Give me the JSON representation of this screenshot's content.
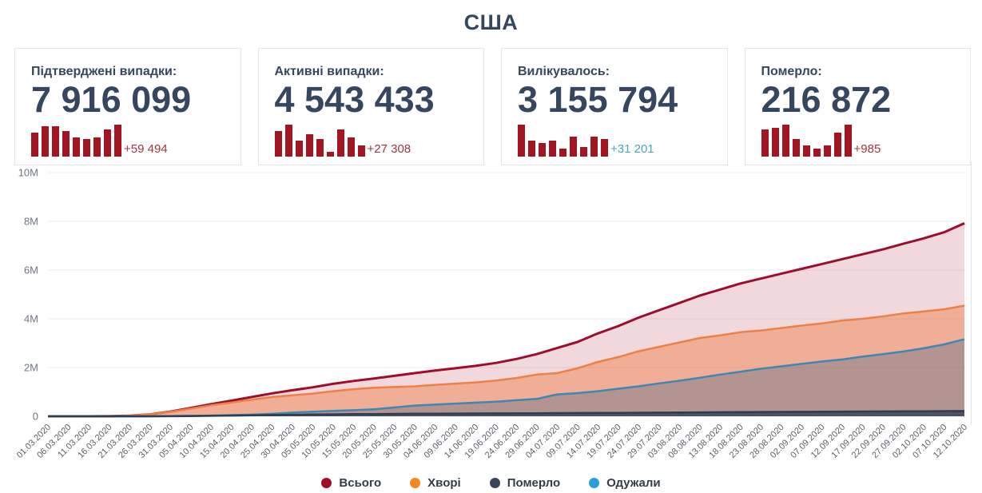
{
  "title": "США",
  "cards": [
    {
      "label": "Підтверджені випадки:",
      "value": "7 916 099",
      "delta": "+59 494",
      "delta_color": "#a03540",
      "spark": [
        75,
        95,
        95,
        80,
        60,
        55,
        60,
        85,
        100
      ]
    },
    {
      "label": "Активні випадки:",
      "value": "4 543 433",
      "delta": "+27 308",
      "delta_color": "#a03540",
      "spark": [
        80,
        100,
        50,
        70,
        55,
        15,
        85,
        60,
        35
      ]
    },
    {
      "label": "Вилікувалось:",
      "value": "3 155 794",
      "delta": "+31 201",
      "delta_color": "#4ba4c9",
      "spark": [
        100,
        50,
        42,
        50,
        25,
        62,
        30,
        62,
        55
      ]
    },
    {
      "label": "Померло:",
      "value": "216 872",
      "delta": "+985",
      "delta_color": "#a03540",
      "spark": [
        85,
        90,
        100,
        55,
        35,
        25,
        35,
        75,
        100
      ]
    }
  ],
  "colors": {
    "accent_navy": "#36465e",
    "card_border": "#e3e6ea",
    "spark_bar": "#a11622",
    "grid": "#ececec",
    "y_tick_text": "#707882",
    "x_tick_text": "#5a6068",
    "legend_text": "#333d48"
  },
  "chart_data": {
    "type": "area",
    "title": "США",
    "xlabel": "",
    "ylabel": "",
    "ylim": [
      0,
      10000000
    ],
    "grid": true,
    "legend_position": "bottom",
    "ylabel_ticks": [
      "0",
      "2M",
      "4M",
      "6M",
      "8M",
      "10M"
    ],
    "x": [
      "01.03.2020",
      "06.03.2020",
      "11.03.2020",
      "16.03.2020",
      "21.03.2020",
      "26.03.2020",
      "31.03.2020",
      "05.04.2020",
      "10.04.2020",
      "15.04.2020",
      "20.04.2020",
      "25.04.2020",
      "30.04.2020",
      "05.05.2020",
      "10.05.2020",
      "15.05.2020",
      "20.05.2020",
      "25.05.2020",
      "30.05.2020",
      "04.06.2020",
      "09.06.2020",
      "14.06.2020",
      "19.06.2020",
      "24.06.2020",
      "29.06.2020",
      "04.07.2020",
      "09.07.2020",
      "14.07.2020",
      "19.07.2020",
      "24.07.2020",
      "29.07.2020",
      "03.08.2020",
      "08.08.2020",
      "13.08.2020",
      "18.08.2020",
      "23.08.2020",
      "28.08.2020",
      "02.09.2020",
      "07.09.2020",
      "12.09.2020",
      "17.09.2020",
      "22.09.2020",
      "27.09.2020",
      "02.10.2020",
      "07.10.2020",
      "12.10.2020"
    ],
    "units": "millions",
    "series": [
      {
        "key": "total",
        "name": "Всього",
        "color": "#9e0e2c",
        "fill": "rgba(160,15,45,0.16)",
        "values": [
          0.0001,
          0.0003,
          0.0013,
          0.0045,
          0.024,
          0.08,
          0.19,
          0.34,
          0.5,
          0.64,
          0.79,
          0.94,
          1.07,
          1.19,
          1.33,
          1.45,
          1.55,
          1.66,
          1.77,
          1.88,
          1.97,
          2.07,
          2.19,
          2.35,
          2.55,
          2.8,
          3.05,
          3.4,
          3.7,
          4.05,
          4.35,
          4.65,
          4.95,
          5.2,
          5.45,
          5.65,
          5.85,
          6.05,
          6.25,
          6.45,
          6.65,
          6.85,
          7.08,
          7.3,
          7.55,
          7.92
        ]
      },
      {
        "key": "active",
        "name": "Хворі",
        "color": "#ef8044",
        "fill": "rgba(240,125,64,0.45)",
        "values": [
          0.0001,
          0.0003,
          0.0013,
          0.0044,
          0.023,
          0.079,
          0.179,
          0.31,
          0.45,
          0.56,
          0.68,
          0.79,
          0.86,
          0.93,
          1.03,
          1.11,
          1.17,
          1.2,
          1.23,
          1.29,
          1.34,
          1.39,
          1.47,
          1.57,
          1.71,
          1.77,
          1.97,
          2.23,
          2.43,
          2.67,
          2.85,
          3.03,
          3.21,
          3.32,
          3.45,
          3.52,
          3.62,
          3.72,
          3.81,
          3.93,
          4.0,
          4.1,
          4.22,
          4.3,
          4.39,
          4.54
        ]
      },
      {
        "key": "recovered",
        "name": "Одужали",
        "color": "#3e87b3",
        "fill": "rgba(80,105,135,0.38)",
        "values": [
          0,
          0,
          0,
          0.0001,
          0.0003,
          0.001,
          0.007,
          0.02,
          0.03,
          0.05,
          0.07,
          0.1,
          0.15,
          0.19,
          0.22,
          0.25,
          0.29,
          0.36,
          0.44,
          0.48,
          0.52,
          0.56,
          0.6,
          0.66,
          0.71,
          0.9,
          0.95,
          1.03,
          1.13,
          1.23,
          1.35,
          1.46,
          1.58,
          1.71,
          1.83,
          1.95,
          2.05,
          2.15,
          2.25,
          2.33,
          2.45,
          2.55,
          2.66,
          2.79,
          2.95,
          3.16
        ]
      },
      {
        "key": "deaths",
        "name": "Померло",
        "color": "#2d3e52",
        "fill": "rgba(45,62,82,0.75)",
        "values": [
          0,
          0,
          0,
          0.0001,
          0.0003,
          0.001,
          0.004,
          0.0095,
          0.019,
          0.028,
          0.042,
          0.053,
          0.063,
          0.072,
          0.08,
          0.087,
          0.093,
          0.098,
          0.104,
          0.108,
          0.112,
          0.116,
          0.119,
          0.122,
          0.126,
          0.13,
          0.133,
          0.137,
          0.141,
          0.146,
          0.151,
          0.156,
          0.161,
          0.167,
          0.171,
          0.176,
          0.18,
          0.184,
          0.188,
          0.192,
          0.196,
          0.2,
          0.204,
          0.208,
          0.212,
          0.217
        ]
      }
    ],
    "legend": [
      {
        "label": "Всього",
        "color": "#9c1126"
      },
      {
        "label": "Хворі",
        "color": "#f6861f"
      },
      {
        "label": "Померло",
        "color": "#36455a"
      },
      {
        "label": "Одужали",
        "color": "#2b9fd9"
      }
    ]
  }
}
